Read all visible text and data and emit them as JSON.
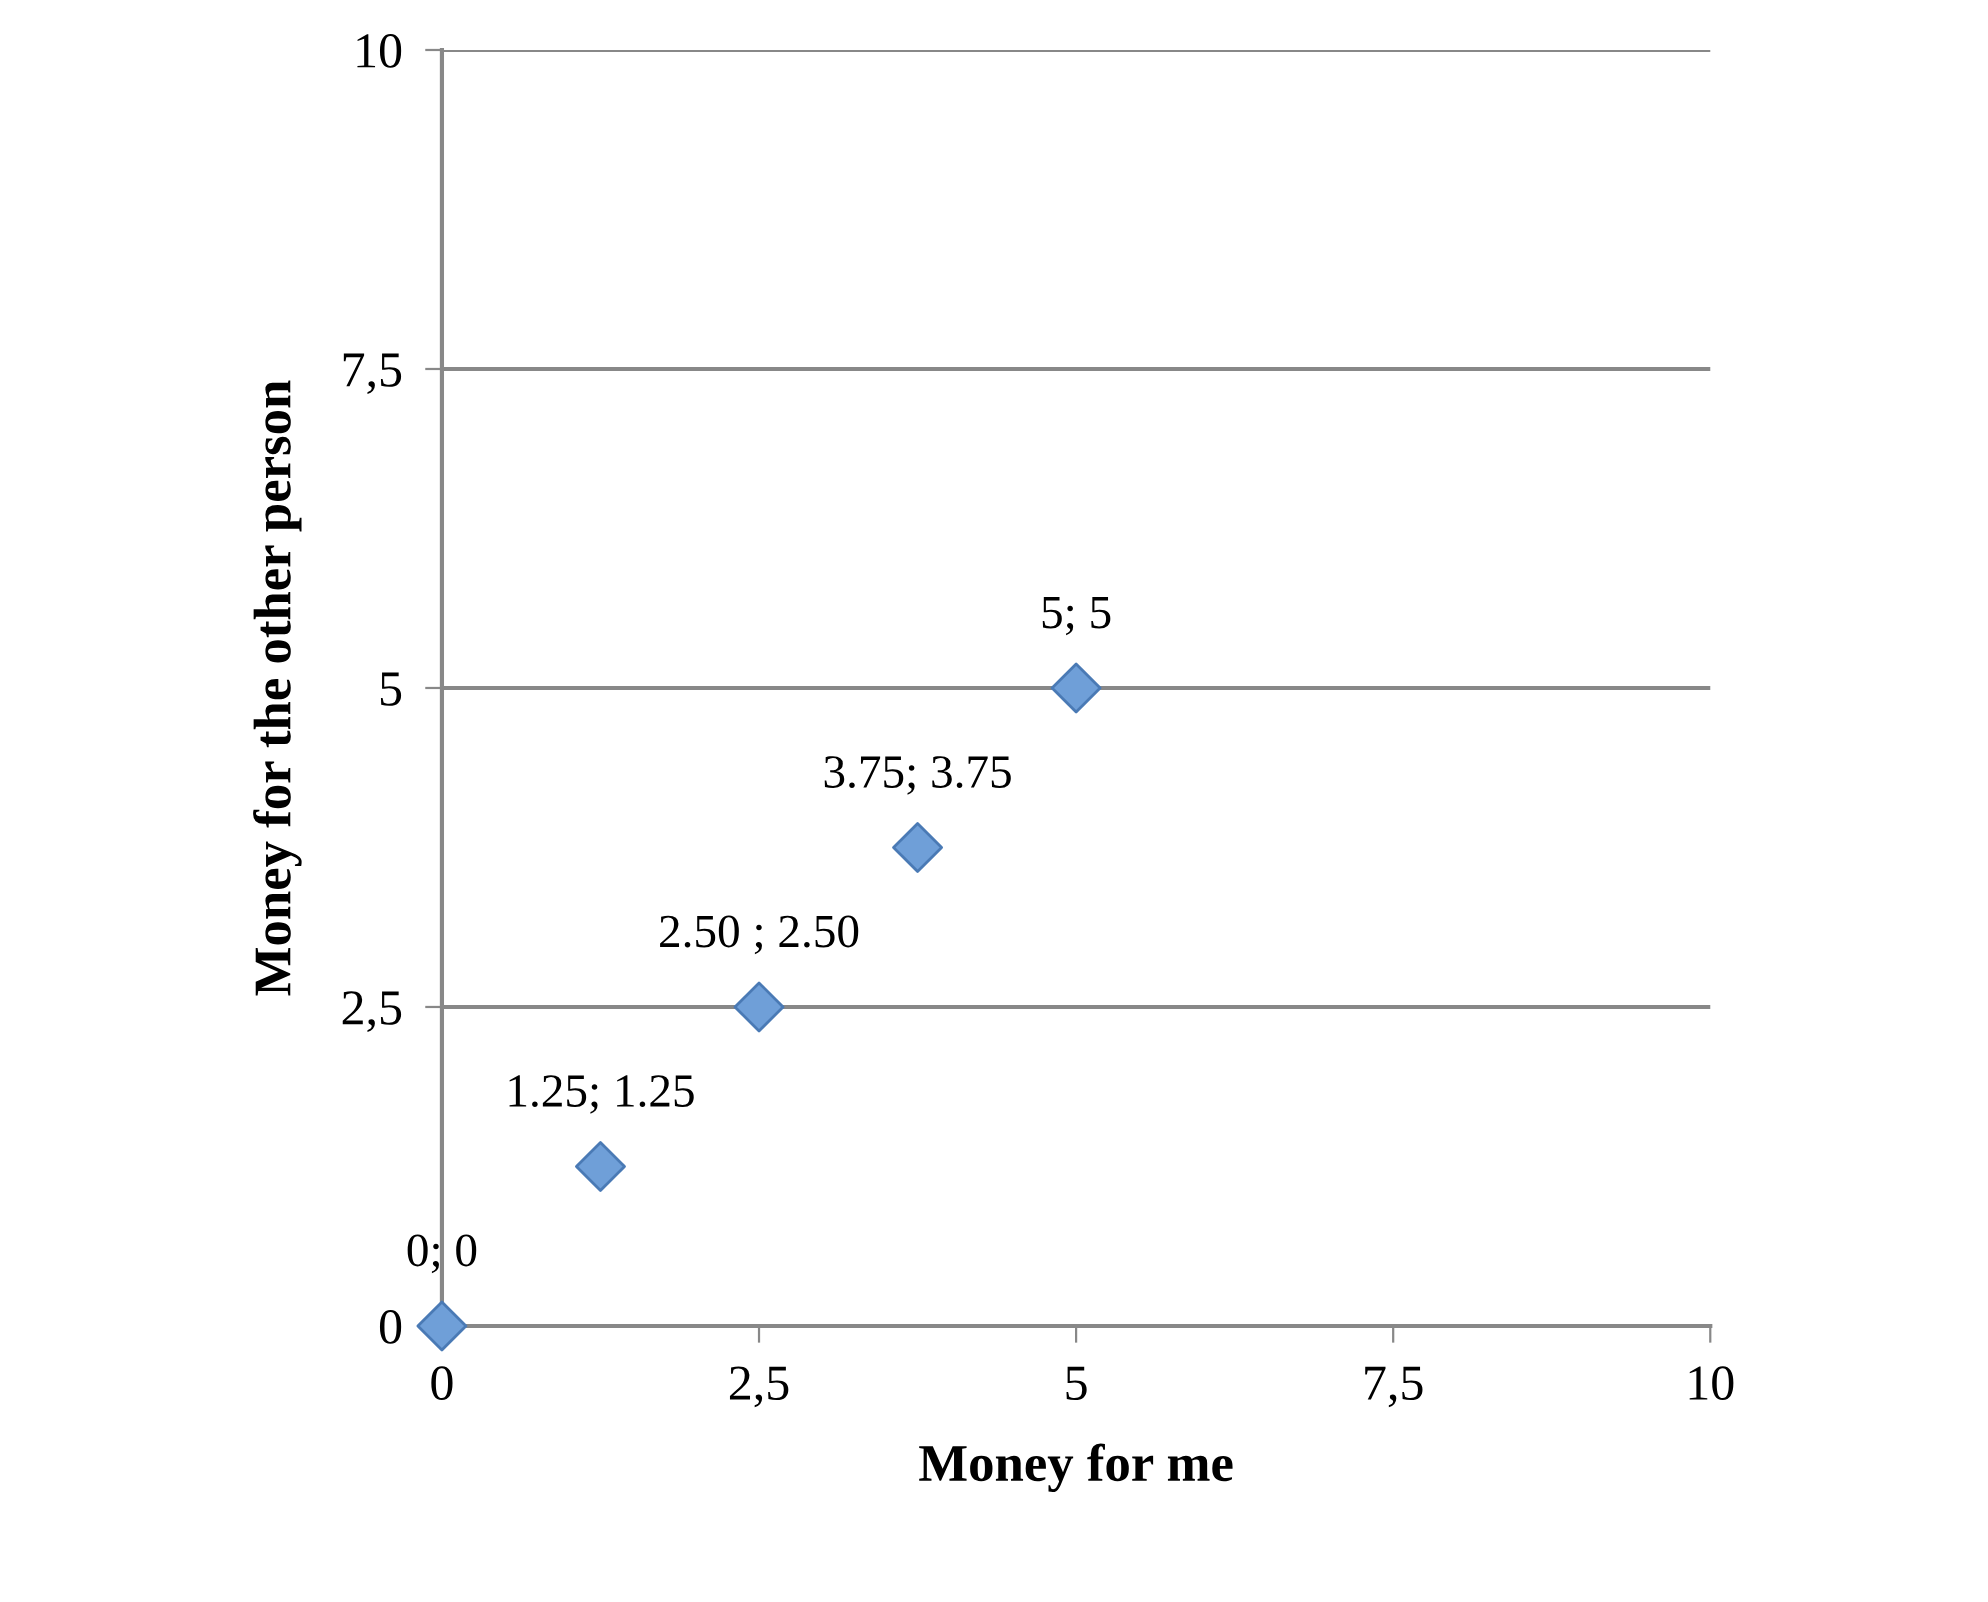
{
  "chart_data": {
    "type": "scatter",
    "xlabel": "Money for me",
    "ylabel": "Money for the other person",
    "x": [
      0,
      1.25,
      2.5,
      3.75,
      5
    ],
    "values": [
      0,
      1.25,
      2.5,
      3.75,
      5
    ],
    "value_labels": [
      "0; 0",
      "1.25; 1.25",
      "2.50 ; 2.50",
      "3.75; 3.75",
      "5; 5"
    ],
    "color": "#6f9fd8",
    "marker": "diamond",
    "xlim": [
      0,
      10
    ],
    "ylim": [
      0,
      10
    ],
    "xticks": [
      0,
      {
        "value": 2.5,
        "label": "2,5"
      },
      5,
      {
        "value": 7.5,
        "label": "7,5"
      },
      10
    ],
    "yticks": [
      0,
      {
        "value": 2.5,
        "label": "2,5"
      },
      5,
      {
        "value": 7.5,
        "label": "7,5"
      },
      10
    ],
    "grid": "y"
  }
}
